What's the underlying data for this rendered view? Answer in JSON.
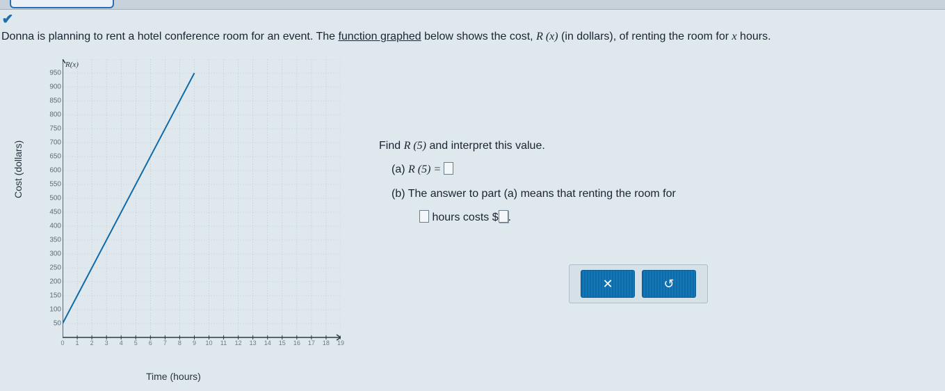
{
  "problem": {
    "prefix": "Donna is planning to rent a hotel conference room for an event. The ",
    "link_text": "function graphed",
    "mid1": " below shows the cost, ",
    "rx": "R (x)",
    "mid2": " (in dollars), of renting the room for ",
    "xvar": "x",
    "suffix": " hours."
  },
  "chart": {
    "type": "line",
    "function_label": "R(x)",
    "ylabel": "Cost (dollars)",
    "xlabel": "Time (hours)",
    "xlim": [
      0,
      19
    ],
    "ylim": [
      0,
      1000
    ],
    "ytick_step": 50,
    "ytick_label_step": 50,
    "xtick_step": 1,
    "y_labels": [
      950,
      900,
      850,
      800,
      750,
      700,
      650,
      600,
      550,
      500,
      450,
      400,
      350,
      300,
      250,
      200,
      150,
      100,
      50
    ],
    "x_labels": [
      0,
      1,
      2,
      3,
      4,
      5,
      6,
      7,
      8,
      9,
      10,
      11,
      12,
      13,
      14,
      15,
      16,
      17,
      18,
      19
    ],
    "line": {
      "x1": 0,
      "y1": 50,
      "x2": 9,
      "y2": 950,
      "color": "#0f6aa8",
      "width": 2
    },
    "grid_color": "#b9c6cf",
    "axis_color": "#2b3945",
    "bg": "#dfe8ed"
  },
  "prompt": {
    "line1a": "Find ",
    "line1b": "R (5)",
    "line1c": " and interpret this value.",
    "a_label": "(a) ",
    "a_expr": "R (5) = ",
    "b_label": "(b) ",
    "b_text1": "The answer to part (a) means that renting the room for",
    "b_text2a": "hours costs  $",
    "b_text2b": "."
  },
  "buttons": {
    "clear": "✕",
    "reset": "↺"
  }
}
